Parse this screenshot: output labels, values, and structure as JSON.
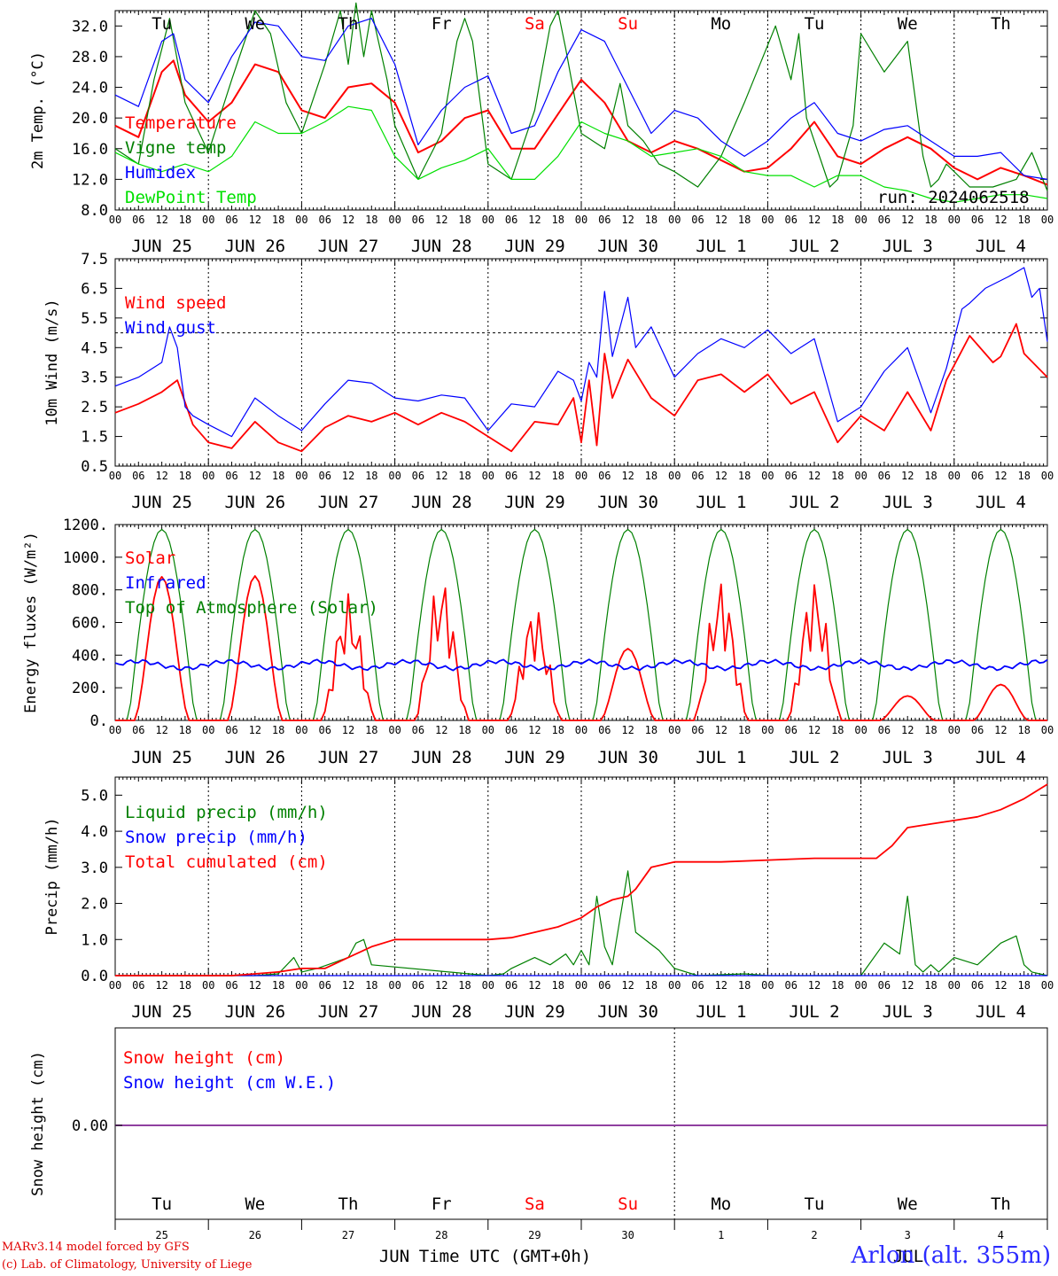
{
  "chart_data": [
    {
      "type": "line",
      "panel": "temperature",
      "ylabel": "2m Temp. (°C)",
      "ylim": [
        8,
        34
      ],
      "yticks": [
        "8.0",
        "12.0",
        "16.0",
        "20.0",
        "24.0",
        "28.0",
        "32.0"
      ],
      "x_hours_range": [
        0,
        240
      ],
      "day_labels": [
        "JUN 25",
        "JUN 26",
        "JUN 27",
        "JUN 28",
        "JUN 29",
        "JUN 30",
        "JUL  1",
        "JUL  2",
        "JUL  3",
        "JUL  4"
      ],
      "weekday_labels": [
        "Tu",
        "We",
        "Th",
        "Fr",
        "Sa",
        "Su",
        "Mo",
        "Tu",
        "We",
        "Th"
      ],
      "run_label": "run: 2024062518",
      "series": [
        {
          "name": "Temperature",
          "color": "#ff0000",
          "x": [
            0,
            6,
            12,
            15,
            18,
            24,
            30,
            36,
            42,
            48,
            54,
            60,
            66,
            72,
            78,
            84,
            90,
            96,
            102,
            108,
            114,
            120,
            126,
            132,
            138,
            144,
            150,
            156,
            162,
            168,
            174,
            180,
            186,
            192,
            198,
            204,
            210,
            216,
            222,
            228,
            234,
            240
          ],
          "values": [
            19,
            17.5,
            26,
            27.5,
            23,
            19.5,
            22,
            27,
            26,
            21,
            20,
            24,
            24.5,
            22,
            15.5,
            17,
            20,
            21,
            16,
            16,
            20.5,
            25,
            22,
            17,
            15.5,
            17,
            16,
            14.5,
            13,
            13.5,
            16,
            19.5,
            15,
            14,
            16,
            17.5,
            16,
            13.5,
            12,
            13.5,
            12.5,
            11.3
          ]
        },
        {
          "name": "Vigne temp",
          "color": "#008000",
          "x": [
            0,
            6,
            10,
            14,
            18,
            24,
            30,
            36,
            40,
            44,
            48,
            54,
            58,
            60,
            62,
            64,
            66,
            70,
            72,
            78,
            84,
            88,
            90,
            92,
            96,
            102,
            108,
            112,
            114,
            116,
            120,
            126,
            130,
            132,
            136,
            140,
            144,
            150,
            156,
            162,
            170,
            174,
            176,
            178,
            184,
            186,
            190,
            192,
            198,
            204,
            208,
            210,
            212,
            214,
            216,
            220,
            226,
            232,
            236,
            240
          ],
          "values": [
            16,
            14,
            25,
            33,
            22,
            15.5,
            25,
            34,
            31,
            22,
            18,
            27,
            34,
            27,
            35,
            28,
            34,
            25,
            19,
            12,
            18,
            30,
            33,
            30,
            14,
            12,
            21,
            32,
            34,
            29,
            18,
            16,
            24.5,
            19,
            17,
            14,
            13,
            11,
            15,
            22,
            32,
            25,
            31,
            20,
            11,
            12,
            19,
            31,
            26,
            30,
            15,
            11,
            12,
            14,
            13,
            11,
            11,
            12,
            15.5,
            10.5
          ]
        },
        {
          "name": "Humidex",
          "color": "#0000ff",
          "x": [
            0,
            6,
            12,
            15,
            18,
            24,
            30,
            36,
            42,
            48,
            54,
            60,
            66,
            72,
            78,
            84,
            90,
            96,
            102,
            108,
            114,
            120,
            126,
            132,
            138,
            144,
            150,
            156,
            162,
            168,
            174,
            180,
            186,
            192,
            198,
            204,
            210,
            216,
            222,
            228,
            234,
            240
          ],
          "values": [
            23,
            21.5,
            30,
            31,
            25,
            22,
            28,
            32.5,
            32,
            28,
            27.5,
            32,
            33,
            27,
            16.5,
            21,
            24,
            25.5,
            18,
            19,
            26,
            31.5,
            30,
            24,
            18,
            21,
            20,
            17,
            15,
            17,
            20,
            22,
            18,
            17,
            18.5,
            19,
            17,
            15,
            15,
            15.5,
            12.5,
            12
          ]
        },
        {
          "name": "DewPoint Temp",
          "color": "#00e000",
          "x": [
            0,
            6,
            12,
            18,
            24,
            30,
            36,
            42,
            48,
            54,
            60,
            66,
            72,
            78,
            84,
            90,
            96,
            102,
            108,
            114,
            120,
            126,
            132,
            138,
            144,
            150,
            156,
            162,
            168,
            174,
            180,
            186,
            192,
            198,
            204,
            210,
            216,
            222,
            228,
            234,
            240
          ],
          "values": [
            15.5,
            14,
            13,
            14,
            13,
            15,
            19.5,
            18,
            18,
            19.5,
            21.5,
            21,
            15,
            12,
            13.5,
            14.5,
            16,
            12,
            12,
            15,
            19.5,
            18,
            17,
            15,
            15.5,
            16,
            15,
            13,
            12.5,
            12.5,
            11,
            12.5,
            12.5,
            11,
            10.5,
            9.5,
            9,
            9.5,
            10,
            10,
            9.5
          ]
        }
      ]
    },
    {
      "type": "line",
      "panel": "wind",
      "ylabel": "10m Wind (m/s)",
      "ylim": [
        0.5,
        7.5
      ],
      "yticks": [
        "0.5",
        "1.5",
        "2.5",
        "3.5",
        "4.5",
        "5.5",
        "6.5",
        "7.5"
      ],
      "reference_line": 5.0,
      "day_labels": [
        "JUN 25",
        "JUN 26",
        "JUN 27",
        "JUN 28",
        "JUN 29",
        "JUN 30",
        "JUL  1",
        "JUL  2",
        "JUL  3",
        "JUL  4"
      ],
      "series": [
        {
          "name": "Wind speed",
          "color": "#ff0000",
          "x": [
            0,
            6,
            12,
            16,
            20,
            24,
            30,
            36,
            42,
            48,
            54,
            60,
            66,
            72,
            78,
            84,
            90,
            96,
            102,
            108,
            114,
            118,
            120,
            122,
            124,
            126,
            128,
            132,
            138,
            144,
            150,
            156,
            162,
            168,
            174,
            180,
            186,
            192,
            198,
            204,
            210,
            214,
            220,
            226,
            228,
            232,
            234,
            240
          ],
          "values": [
            2.3,
            2.6,
            3,
            3.4,
            1.9,
            1.3,
            1.1,
            2,
            1.3,
            1,
            1.8,
            2.2,
            2,
            2.3,
            1.9,
            2.3,
            2,
            1.5,
            1,
            2,
            1.9,
            2.8,
            1.3,
            3.4,
            1.2,
            4.3,
            2.8,
            4.1,
            2.8,
            2.2,
            3.4,
            3.6,
            3,
            3.6,
            2.6,
            3,
            1.3,
            2.2,
            1.7,
            3,
            1.7,
            3.4,
            4.9,
            4,
            4.2,
            5.3,
            4.3,
            3.5
          ]
        },
        {
          "name": "Wind gust",
          "color": "#0000ff",
          "x": [
            0,
            6,
            12,
            14,
            16,
            18,
            20,
            24,
            30,
            36,
            42,
            48,
            54,
            60,
            66,
            72,
            78,
            84,
            90,
            96,
            102,
            108,
            114,
            118,
            120,
            122,
            124,
            126,
            128,
            132,
            134,
            138,
            144,
            150,
            156,
            162,
            168,
            174,
            180,
            186,
            192,
            198,
            204,
            210,
            214,
            218,
            220,
            224,
            230,
            234,
            236,
            238,
            240
          ],
          "values": [
            3.2,
            3.5,
            4,
            5.2,
            4.5,
            2.5,
            2.2,
            1.9,
            1.5,
            2.8,
            2.2,
            1.7,
            2.6,
            3.4,
            3.3,
            2.8,
            2.7,
            2.9,
            2.8,
            1.7,
            2.6,
            2.5,
            3.7,
            3.4,
            2.7,
            4,
            3.5,
            6.4,
            4.2,
            6.2,
            4.5,
            5.2,
            3.5,
            4.3,
            4.8,
            4.5,
            5.1,
            4.3,
            4.8,
            2,
            2.5,
            3.7,
            4.5,
            2.3,
            3.8,
            5.8,
            6,
            6.5,
            6.9,
            7.2,
            6.2,
            6.5,
            4.7
          ]
        }
      ]
    },
    {
      "type": "line",
      "panel": "energy",
      "ylabel": "Energy fluxes (W/m²)",
      "ylim": [
        0,
        1200
      ],
      "yticks": [
        "0.",
        "200.",
        "400.",
        "600.",
        "800.",
        "1000.",
        "1200."
      ],
      "day_labels": [
        "JUN 25",
        "JUN 26",
        "JUN 27",
        "JUN 28",
        "JUN 29",
        "JUN 30",
        "JUL  1",
        "JUL  2",
        "JUL  3",
        "JUL  4"
      ],
      "solar_peaks": [
        880,
        885,
        780,
        900,
        720,
        440,
        880,
        880,
        150,
        220
      ],
      "toa_peak": 1170,
      "infrared_mean": 340,
      "series": [
        {
          "name": "Solar",
          "color": "#ff0000"
        },
        {
          "name": "Infrared",
          "color": "#0000ff"
        },
        {
          "name": "Top of Atmosphere (Solar)",
          "color": "#008000"
        }
      ]
    },
    {
      "type": "line",
      "panel": "precip",
      "ylabel": "Precip (mm/h)",
      "ylim": [
        0,
        5.5
      ],
      "yticks": [
        "0.0",
        "1.0",
        "2.0",
        "3.0",
        "4.0",
        "5.0"
      ],
      "day_labels": [
        "JUN 25",
        "JUN 26",
        "JUN 27",
        "JUN 28",
        "JUN 29",
        "JUN 30",
        "JUL  1",
        "JUL  2",
        "JUL  3",
        "JUL  4"
      ],
      "series": [
        {
          "name": "Liquid precip (mm/h)",
          "color": "#008000",
          "x": [
            0,
            36,
            42,
            46,
            48,
            52,
            60,
            62,
            64,
            66,
            96,
            100,
            102,
            108,
            112,
            116,
            118,
            120,
            122,
            124,
            126,
            128,
            132,
            134,
            140,
            144,
            150,
            162,
            168,
            192,
            198,
            202,
            204,
            206,
            208,
            210,
            212,
            216,
            222,
            228,
            232,
            234,
            236,
            240
          ],
          "values": [
            0,
            0,
            0.05,
            0.5,
            0.1,
            0.2,
            0.5,
            0.9,
            1,
            0.3,
            0,
            0.05,
            0.2,
            0.5,
            0.3,
            0.6,
            0.3,
            0.7,
            0.3,
            2.2,
            0.8,
            0.3,
            2.9,
            1.2,
            0.7,
            0.2,
            0,
            0.05,
            0,
            0,
            0.9,
            0.6,
            2.2,
            0.3,
            0.1,
            0.3,
            0.1,
            0.5,
            0.3,
            0.9,
            1.1,
            0.3,
            0.1,
            0
          ]
        },
        {
          "name": "Snow precip (mm/h)",
          "color": "#0000ff",
          "x": [
            0,
            240
          ],
          "values": [
            0,
            0
          ]
        },
        {
          "name": "Total cumulated (cm)",
          "color": "#ff0000",
          "x": [
            0,
            30,
            36,
            42,
            48,
            54,
            60,
            66,
            72,
            96,
            102,
            108,
            114,
            120,
            124,
            128,
            132,
            134,
            138,
            144,
            156,
            180,
            196,
            200,
            204,
            210,
            216,
            222,
            228,
            234,
            240
          ],
          "values": [
            0,
            0,
            0.05,
            0.1,
            0.2,
            0.2,
            0.5,
            0.8,
            1,
            1,
            1.05,
            1.2,
            1.35,
            1.6,
            1.9,
            2.1,
            2.2,
            2.4,
            3,
            3.15,
            3.15,
            3.25,
            3.25,
            3.6,
            4.1,
            4.2,
            4.3,
            4.4,
            4.6,
            4.9,
            5.3
          ]
        }
      ]
    },
    {
      "type": "line",
      "panel": "snow",
      "ylabel": "Snow height (cm)",
      "ytick": "0.00",
      "weekday_labels": [
        "Tu",
        "We",
        "Th",
        "Fr",
        "Sa",
        "Su",
        "Mo",
        "Tu",
        "We",
        "Th"
      ],
      "date_labels": [
        "25",
        "26",
        "27",
        "28",
        "29",
        "30",
        "1",
        "2",
        "3",
        "4"
      ],
      "month_labels": [
        "JUN",
        "JUL"
      ],
      "xlabel": "Time UTC (GMT+0h)",
      "series": [
        {
          "name": "Snow height (cm)",
          "color": "#ff0000",
          "values": [
            0,
            0
          ]
        },
        {
          "name": "Snow height (cm W.E.)",
          "color": "#0000ff",
          "values": [
            0,
            0
          ]
        }
      ]
    }
  ],
  "colors": {
    "weekend": "#ff0000",
    "line": "#9040a0",
    "station": "#2a2aff"
  },
  "footer": {
    "credit_line1": "MARv3.14 model forced by GFS",
    "credit_line2": "(c) Lab. of Climatology, University of Liege",
    "station": "Arlon (alt. 355m)"
  }
}
